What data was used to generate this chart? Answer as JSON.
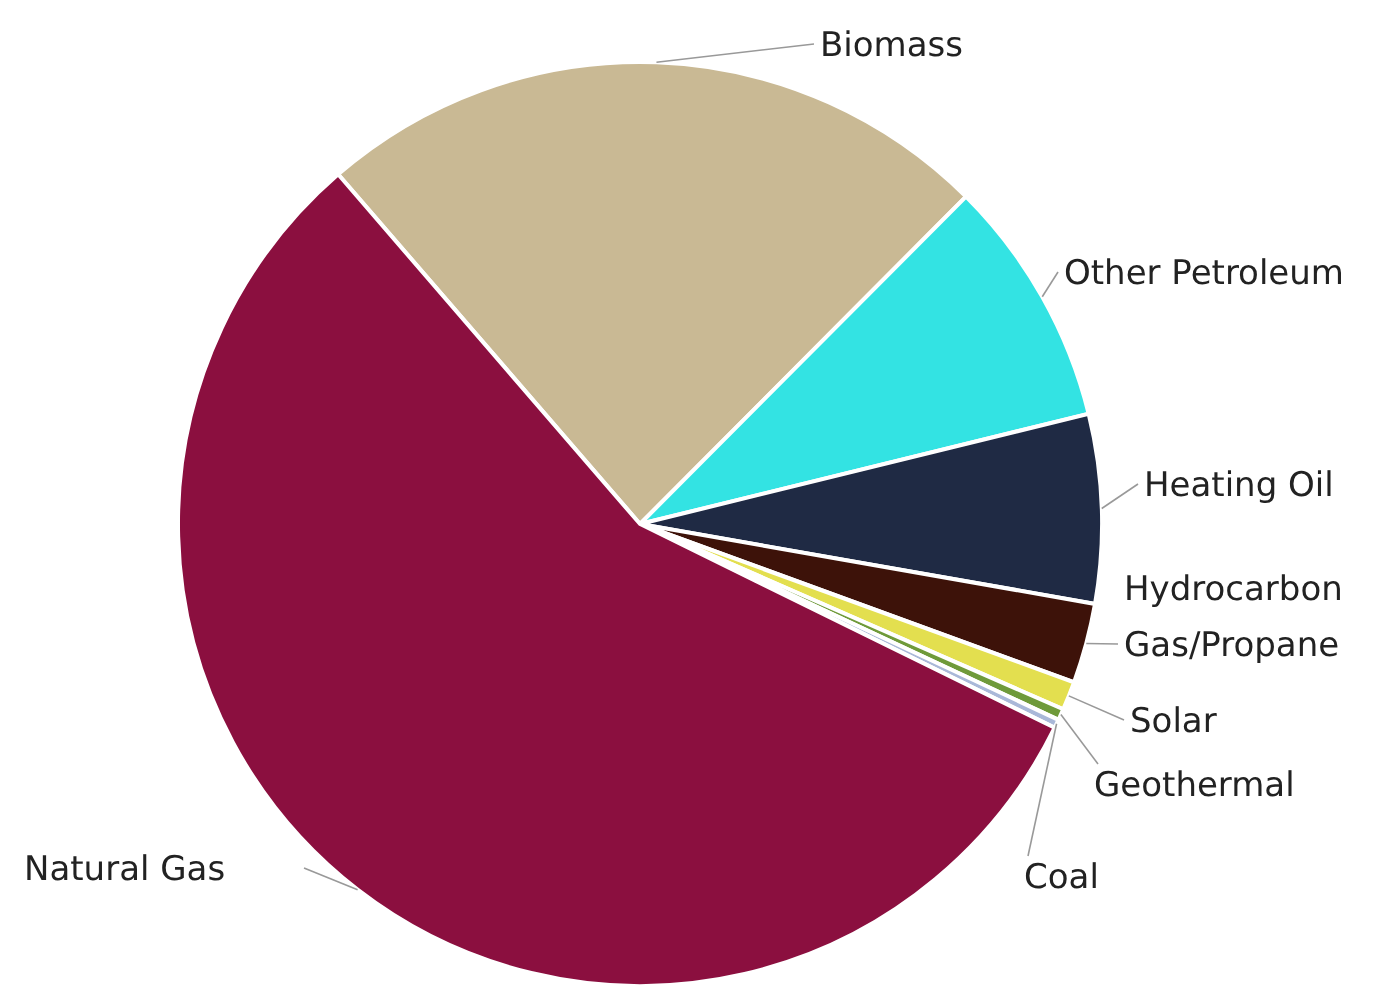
{
  "chart_data": {
    "type": "pie",
    "categories": [
      "Biomass",
      "Other Petroleum",
      "Heating Oil",
      "Hydrocarbon Gas/Propane",
      "Solar",
      "Geothermal",
      "Coal",
      "Natural Gas"
    ],
    "values": [
      23.8,
      8.7,
      6.6,
      2.8,
      1.0,
      0.4,
      0.3,
      56.4
    ],
    "colors": [
      "#c9b994",
      "#33e3e3",
      "#1f2a44",
      "#3d1209",
      "#e3df4f",
      "#6f9a3a",
      "#a9b8d8",
      "#8b0f3f"
    ]
  }
}
